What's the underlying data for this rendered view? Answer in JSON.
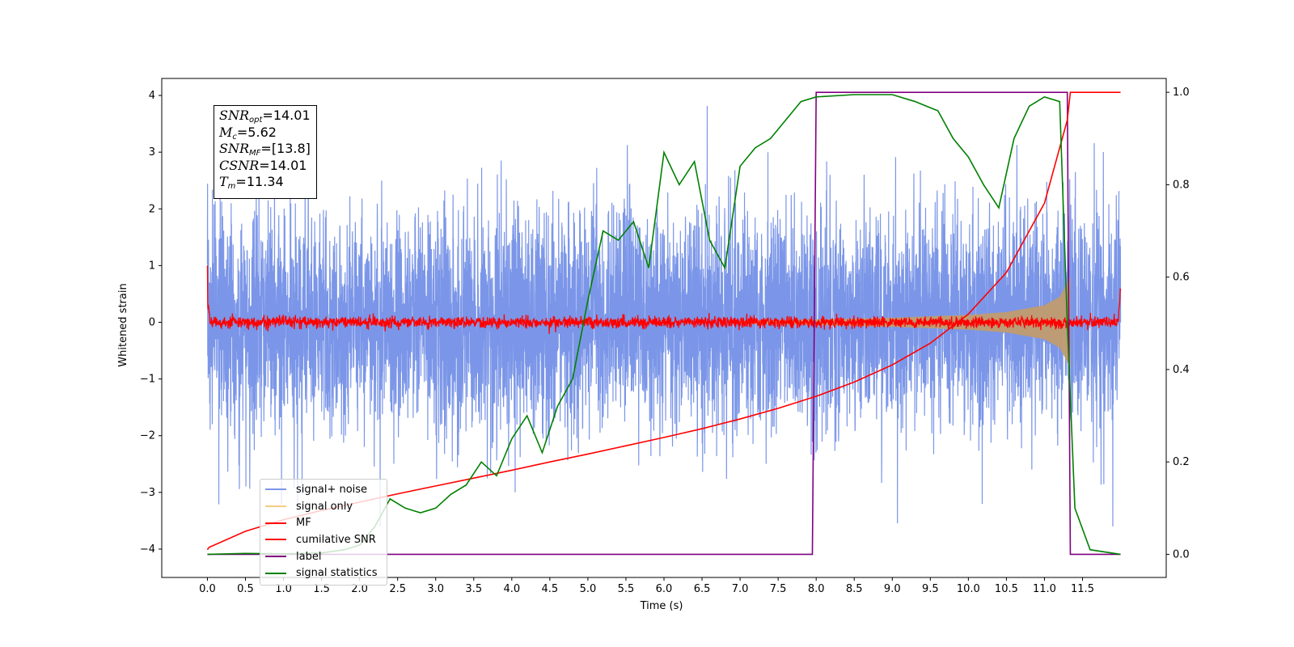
{
  "chart_data": {
    "type": "line",
    "xlabel": "Time (s)",
    "ylabel": "Whitened strain",
    "xlim": [
      -0.6,
      12.6
    ],
    "ylim_left": [
      -4.5,
      4.3
    ],
    "ylim_right": [
      -0.05,
      1.03
    ],
    "x_ticks": [
      0.0,
      0.5,
      1.0,
      1.5,
      2.0,
      2.5,
      3.0,
      3.5,
      4.0,
      4.5,
      5.0,
      5.5,
      6.0,
      6.5,
      7.0,
      7.5,
      8.0,
      8.5,
      9.0,
      9.5,
      10.0,
      10.5,
      11.0,
      11.5
    ],
    "x_tick_labels": [
      "0.0",
      "0.5",
      "1.0",
      "1.5",
      "2.0",
      "2.5",
      "3.0",
      "3.5",
      "4.0",
      "4.5",
      "5.0",
      "5.5",
      "6.0",
      "6.5",
      "7.0",
      "7.5",
      "8.0",
      "8.5",
      "9.0",
      "9.5",
      "10.0",
      "10.5",
      "11.0",
      "11.5"
    ],
    "y_ticks_left": [
      -4,
      -3,
      -2,
      -1,
      0,
      1,
      2,
      3,
      4
    ],
    "y_tick_labels_left": [
      "−4",
      "−3",
      "−2",
      "−1",
      "0",
      "1",
      "2",
      "3",
      "4"
    ],
    "y_ticks_right": [
      0.0,
      0.2,
      0.4,
      0.6,
      0.8,
      1.0
    ],
    "y_tick_labels_right": [
      "0.0",
      "0.2",
      "0.4",
      "0.6",
      "0.8",
      "1.0"
    ],
    "grid": false,
    "legend_position": "lower-left",
    "series": [
      {
        "name": "signal+ noise",
        "axis": "left",
        "color": "#7b96e8",
        "description_type": "noise",
        "time_range": [
          0.0,
          12.0
        ],
        "amplitude_range": [
          -3.6,
          3.9
        ],
        "typical_peak": 2.0
      },
      {
        "name": "signal only",
        "axis": "left",
        "color": "#f5cc7f",
        "fill_color": "#c19b6f",
        "envelope_x": [
          7.0,
          8.0,
          9.0,
          10.0,
          10.5,
          11.0,
          11.2,
          11.34
        ],
        "envelope_y": [
          0.03,
          0.05,
          0.08,
          0.13,
          0.18,
          0.3,
          0.45,
          0.8
        ]
      },
      {
        "name": "MF",
        "axis": "left",
        "color": "#ff0000",
        "description_type": "noise",
        "time_range": [
          0.0,
          12.0
        ],
        "amplitude_range": [
          -0.15,
          1.0
        ],
        "typical_peak": 0.15
      },
      {
        "name": "cumilative SNR",
        "axis": "right",
        "color": "#ff0000",
        "x": [
          0.0,
          0.02,
          0.5,
          1.0,
          1.5,
          2.0,
          2.5,
          3.0,
          3.5,
          4.0,
          4.5,
          5.0,
          5.5,
          6.0,
          6.5,
          7.0,
          7.5,
          8.0,
          8.5,
          9.0,
          9.5,
          10.0,
          10.5,
          11.0,
          11.3,
          11.34,
          12.0
        ],
        "y": [
          0.01,
          0.015,
          0.05,
          0.075,
          0.095,
          0.113,
          0.131,
          0.148,
          0.165,
          0.182,
          0.2,
          0.217,
          0.235,
          0.253,
          0.272,
          0.293,
          0.316,
          0.342,
          0.373,
          0.41,
          0.457,
          0.52,
          0.61,
          0.76,
          0.94,
          1.0,
          1.0
        ]
      },
      {
        "name": "label",
        "axis": "right",
        "color": "#800080",
        "x": [
          0.0,
          7.95,
          8.0,
          11.3,
          11.34,
          12.0
        ],
        "y": [
          0.0,
          0.0,
          1.0,
          1.0,
          0.0,
          0.0
        ]
      },
      {
        "name": "signal statistics",
        "axis": "right",
        "color": "#008000",
        "x": [
          0.0,
          0.5,
          1.0,
          1.5,
          1.8,
          2.0,
          2.2,
          2.4,
          2.6,
          2.8,
          3.0,
          3.2,
          3.4,
          3.6,
          3.8,
          4.0,
          4.2,
          4.4,
          4.6,
          4.8,
          5.0,
          5.2,
          5.4,
          5.6,
          5.8,
          6.0,
          6.2,
          6.4,
          6.6,
          6.8,
          7.0,
          7.2,
          7.4,
          7.6,
          7.8,
          8.0,
          8.5,
          9.0,
          9.3,
          9.6,
          9.8,
          10.0,
          10.2,
          10.4,
          10.6,
          10.8,
          11.0,
          11.2,
          11.3,
          11.4,
          11.6,
          12.0
        ],
        "y": [
          0.0,
          0.002,
          0.001,
          0.003,
          0.01,
          0.02,
          0.06,
          0.12,
          0.1,
          0.09,
          0.1,
          0.13,
          0.15,
          0.2,
          0.17,
          0.25,
          0.3,
          0.22,
          0.32,
          0.38,
          0.55,
          0.7,
          0.68,
          0.72,
          0.62,
          0.87,
          0.8,
          0.85,
          0.68,
          0.62,
          0.84,
          0.88,
          0.9,
          0.94,
          0.98,
          0.99,
          0.995,
          0.995,
          0.98,
          0.96,
          0.9,
          0.86,
          0.8,
          0.75,
          0.9,
          0.97,
          0.99,
          0.98,
          0.5,
          0.1,
          0.01,
          0.0
        ]
      }
    ]
  },
  "stats_box": {
    "snr_opt_sym": "SNR",
    "snr_opt_sub": "opt",
    "snr_opt_val": "=14.01",
    "mc_sym": "M",
    "mc_sub": "c",
    "mc_val": "=5.62",
    "snr_mf_sym": "SNR",
    "snr_mf_sub": "MF",
    "snr_mf_val": "=[13.8]",
    "csnr_sym": "CSNR",
    "csnr_val": "=14.01",
    "tm_sym": "T",
    "tm_sub": "m",
    "tm_val": "=11.34"
  }
}
